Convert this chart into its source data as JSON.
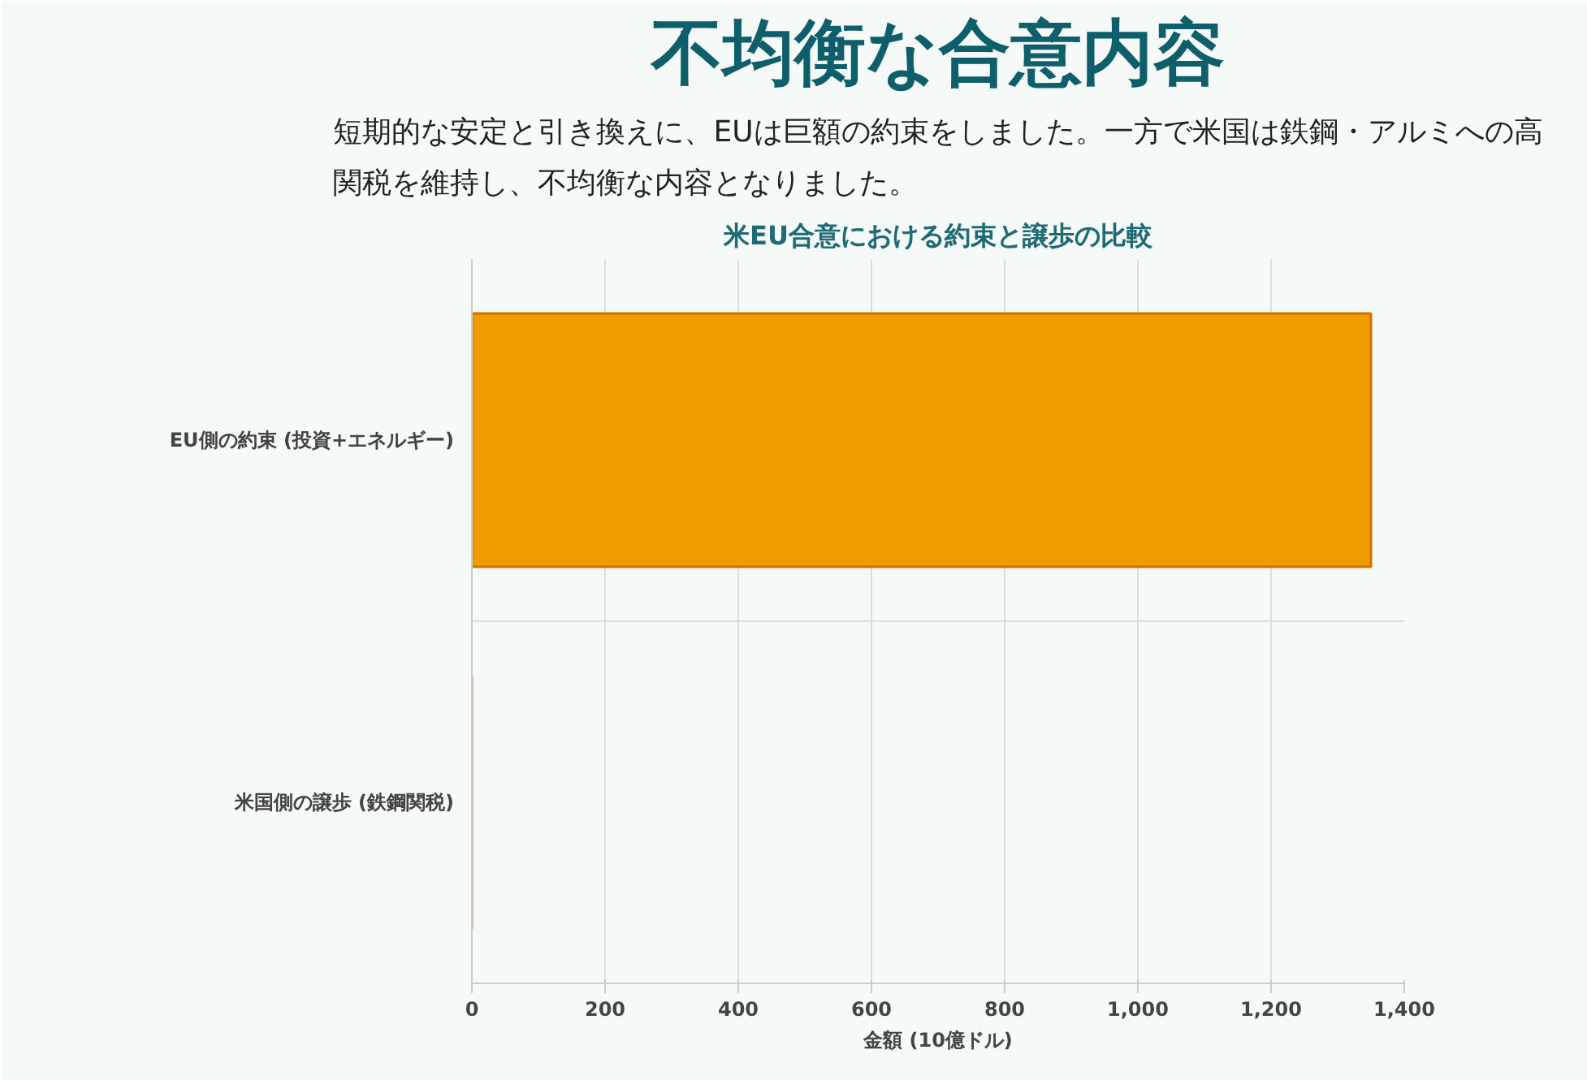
{
  "chart_data": {
    "type": "bar",
    "orientation": "horizontal",
    "title": "不均衡な合意内容",
    "subtitle": "短期的な安定と引き換えに、EUは巨額の約束をしました。一方で米国は鉄鋼・アルミへの高関税を維持し、不均衡な内容となりました。",
    "annotations": [
      "米EU合意における約束と譲歩の比較"
    ],
    "categories": [
      "EU側の約束 (投資+エネルギー)",
      "米国側の譲歩 (鉄鋼関税)"
    ],
    "series": [
      {
        "color": "#ef9c00",
        "values": [
          1350,
          0
        ]
      }
    ],
    "xlabel": "金額 (10億ドル)",
    "xlim": [
      0,
      1400
    ],
    "xticks": [
      0,
      200,
      400,
      {
        "value": 600,
        "label": "600"
      },
      800,
      {
        "value": 1000,
        "label": "1,000"
      },
      {
        "value": 1200,
        "label": "1,200"
      },
      {
        "value": 1400,
        "label": "1,400"
      }
    ],
    "grid": true
  }
}
